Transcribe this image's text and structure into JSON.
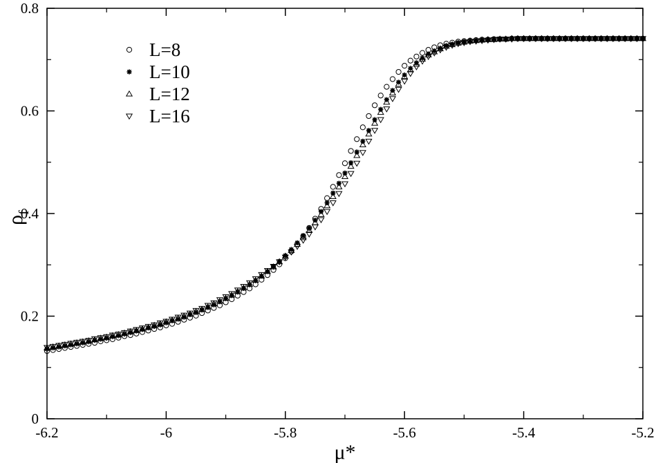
{
  "chart_data": {
    "type": "scatter",
    "title": "",
    "xlabel": "μ*",
    "ylabel_main": "ρ",
    "ylabel_sub": "f",
    "xlim": [
      -6.2,
      -5.2
    ],
    "ylim": [
      0,
      0.8
    ],
    "x_ticks": [
      -6.2,
      -6.0,
      -5.8,
      -5.6,
      -5.4,
      -5.2
    ],
    "x_tick_labels": [
      "-6.2",
      "-6",
      "-5.8",
      "-5.6",
      "-5.4",
      "-5.2"
    ],
    "y_ticks": [
      0,
      0.2,
      0.4,
      0.6,
      0.8
    ],
    "y_tick_labels": [
      "0",
      "0.2",
      "0.4",
      "0.6",
      "0.8"
    ],
    "grid": false,
    "legend_position": "top-left",
    "x_start": -6.2,
    "x_step": 0.01,
    "series": [
      {
        "name": "L=8",
        "marker": "circle-open",
        "values": [
          0.132,
          0.134,
          0.136,
          0.138,
          0.14,
          0.142,
          0.144,
          0.146,
          0.148,
          0.151,
          0.153,
          0.155,
          0.158,
          0.161,
          0.163,
          0.166,
          0.169,
          0.172,
          0.175,
          0.178,
          0.182,
          0.185,
          0.189,
          0.193,
          0.197,
          0.201,
          0.206,
          0.211,
          0.216,
          0.221,
          0.227,
          0.233,
          0.24,
          0.247,
          0.254,
          0.262,
          0.271,
          0.28,
          0.29,
          0.301,
          0.313,
          0.326,
          0.34,
          0.356,
          0.372,
          0.39,
          0.409,
          0.43,
          0.452,
          0.475,
          0.498,
          0.522,
          0.545,
          0.568,
          0.59,
          0.611,
          0.63,
          0.647,
          0.662,
          0.676,
          0.688,
          0.698,
          0.706,
          0.713,
          0.719,
          0.724,
          0.728,
          0.731,
          0.733,
          0.735,
          0.736,
          0.737,
          0.738,
          0.739,
          0.739,
          0.74,
          0.74,
          0.74,
          0.741,
          0.741,
          0.741,
          0.741,
          0.741,
          0.741,
          0.741,
          0.741,
          0.741,
          0.741,
          0.741,
          0.741,
          0.741,
          0.741,
          0.741,
          0.741,
          0.741,
          0.741,
          0.741,
          0.741,
          0.741,
          0.741,
          0.741
        ]
      },
      {
        "name": "L=10",
        "marker": "star",
        "values": [
          0.136,
          0.138,
          0.14,
          0.142,
          0.144,
          0.146,
          0.148,
          0.15,
          0.153,
          0.155,
          0.157,
          0.16,
          0.162,
          0.165,
          0.168,
          0.171,
          0.174,
          0.177,
          0.18,
          0.183,
          0.187,
          0.191,
          0.194,
          0.198,
          0.203,
          0.207,
          0.212,
          0.217,
          0.222,
          0.228,
          0.234,
          0.24,
          0.247,
          0.254,
          0.261,
          0.269,
          0.278,
          0.287,
          0.297,
          0.307,
          0.318,
          0.33,
          0.343,
          0.357,
          0.372,
          0.387,
          0.404,
          0.421,
          0.44,
          0.459,
          0.479,
          0.499,
          0.52,
          0.541,
          0.562,
          0.583,
          0.603,
          0.622,
          0.64,
          0.656,
          0.67,
          0.683,
          0.694,
          0.703,
          0.711,
          0.717,
          0.722,
          0.727,
          0.73,
          0.733,
          0.735,
          0.736,
          0.737,
          0.738,
          0.739,
          0.74,
          0.74,
          0.74,
          0.741,
          0.741,
          0.741,
          0.741,
          0.741,
          0.741,
          0.741,
          0.741,
          0.741,
          0.741,
          0.741,
          0.741,
          0.741,
          0.741,
          0.741,
          0.741,
          0.741,
          0.741,
          0.741,
          0.741,
          0.741,
          0.741,
          0.741
        ]
      },
      {
        "name": "L=12",
        "marker": "triangle-up-open",
        "values": [
          0.138,
          0.14,
          0.142,
          0.144,
          0.146,
          0.148,
          0.15,
          0.152,
          0.154,
          0.157,
          0.159,
          0.162,
          0.164,
          0.167,
          0.17,
          0.172,
          0.175,
          0.178,
          0.182,
          0.185,
          0.189,
          0.192,
          0.196,
          0.2,
          0.204,
          0.209,
          0.213,
          0.218,
          0.224,
          0.229,
          0.235,
          0.241,
          0.248,
          0.255,
          0.262,
          0.27,
          0.278,
          0.287,
          0.296,
          0.306,
          0.317,
          0.328,
          0.34,
          0.353,
          0.367,
          0.382,
          0.398,
          0.415,
          0.433,
          0.452,
          0.472,
          0.492,
          0.513,
          0.534,
          0.555,
          0.576,
          0.597,
          0.617,
          0.635,
          0.652,
          0.667,
          0.68,
          0.691,
          0.701,
          0.709,
          0.715,
          0.721,
          0.726,
          0.729,
          0.732,
          0.734,
          0.736,
          0.737,
          0.738,
          0.739,
          0.739,
          0.74,
          0.74,
          0.741,
          0.741,
          0.741,
          0.741,
          0.741,
          0.741,
          0.741,
          0.741,
          0.741,
          0.741,
          0.741,
          0.741,
          0.741,
          0.741,
          0.741,
          0.741,
          0.741,
          0.741,
          0.741,
          0.741,
          0.741,
          0.741,
          0.741
        ]
      },
      {
        "name": "L=16",
        "marker": "triangle-down-open",
        "values": [
          0.139,
          0.141,
          0.143,
          0.145,
          0.147,
          0.149,
          0.151,
          0.153,
          0.156,
          0.158,
          0.16,
          0.163,
          0.165,
          0.168,
          0.171,
          0.174,
          0.177,
          0.18,
          0.183,
          0.187,
          0.19,
          0.194,
          0.198,
          0.202,
          0.206,
          0.211,
          0.215,
          0.221,
          0.226,
          0.232,
          0.238,
          0.244,
          0.251,
          0.258,
          0.265,
          0.273,
          0.281,
          0.289,
          0.297,
          0.306,
          0.315,
          0.325,
          0.336,
          0.348,
          0.36,
          0.374,
          0.388,
          0.404,
          0.421,
          0.439,
          0.458,
          0.478,
          0.498,
          0.519,
          0.541,
          0.562,
          0.583,
          0.604,
          0.624,
          0.642,
          0.658,
          0.673,
          0.686,
          0.697,
          0.706,
          0.713,
          0.719,
          0.724,
          0.728,
          0.731,
          0.733,
          0.735,
          0.736,
          0.737,
          0.738,
          0.739,
          0.74,
          0.74,
          0.74,
          0.741,
          0.741,
          0.741,
          0.741,
          0.741,
          0.741,
          0.741,
          0.741,
          0.741,
          0.741,
          0.741,
          0.741,
          0.741,
          0.741,
          0.741,
          0.741,
          0.741,
          0.741,
          0.741,
          0.741,
          0.741,
          0.741
        ]
      }
    ]
  }
}
